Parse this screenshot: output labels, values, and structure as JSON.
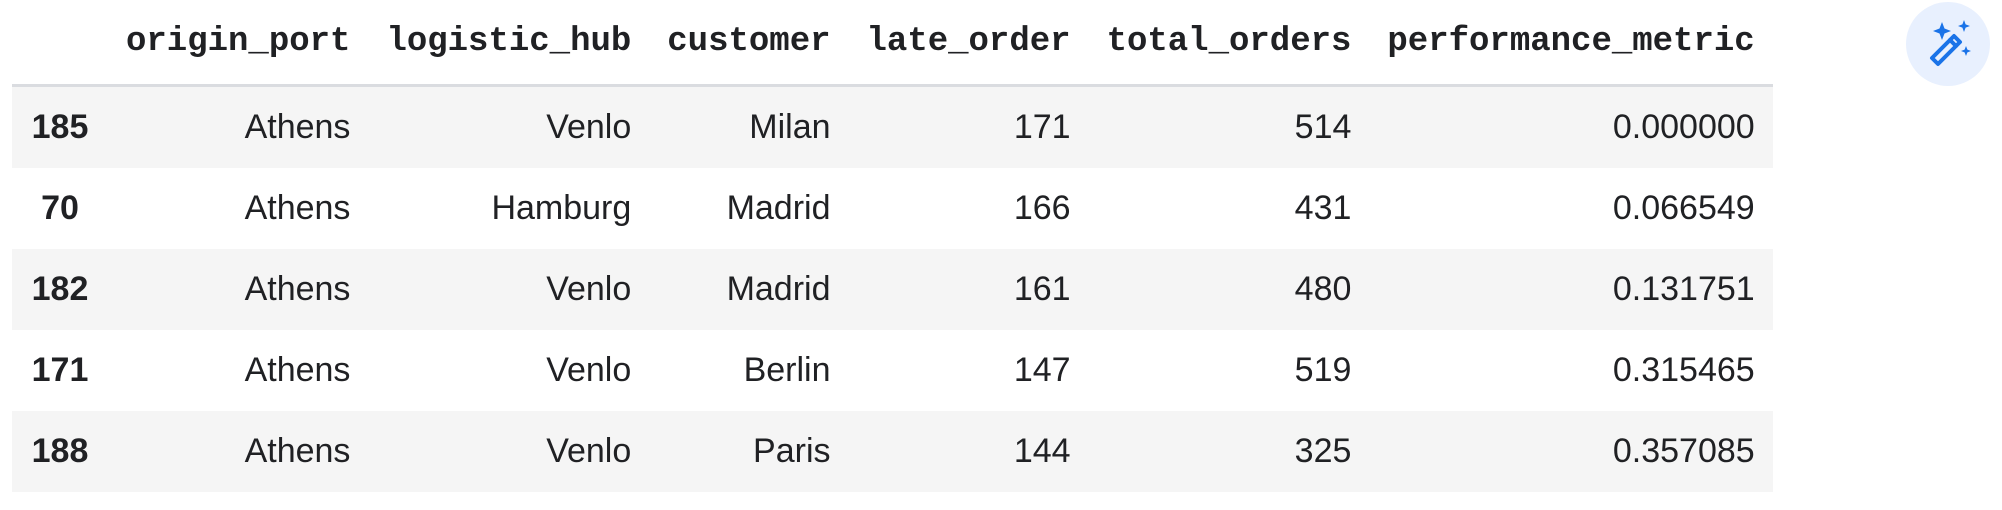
{
  "table": {
    "columns": [
      "",
      "origin_port",
      "logistic_hub",
      "customer",
      "late_order",
      "total_orders",
      "performance_metric"
    ],
    "rows": [
      {
        "index": "185",
        "origin_port": "Athens",
        "logistic_hub": "Venlo",
        "customer": "Milan",
        "late_order": "171",
        "total_orders": "514",
        "performance_metric": "0.000000"
      },
      {
        "index": "70",
        "origin_port": "Athens",
        "logistic_hub": "Hamburg",
        "customer": "Madrid",
        "late_order": "166",
        "total_orders": "431",
        "performance_metric": "0.066549"
      },
      {
        "index": "182",
        "origin_port": "Athens",
        "logistic_hub": "Venlo",
        "customer": "Madrid",
        "late_order": "161",
        "total_orders": "480",
        "performance_metric": "0.131751"
      },
      {
        "index": "171",
        "origin_port": "Athens",
        "logistic_hub": "Venlo",
        "customer": "Berlin",
        "late_order": "147",
        "total_orders": "519",
        "performance_metric": "0.315465"
      },
      {
        "index": "188",
        "origin_port": "Athens",
        "logistic_hub": "Venlo",
        "customer": "Paris",
        "late_order": "144",
        "total_orders": "325",
        "performance_metric": "0.357085"
      }
    ]
  },
  "toolbar": {
    "magic_icon": "magic-wand-icon",
    "accent_color": "#1a73e8",
    "button_bg": "#e8f0fe"
  }
}
